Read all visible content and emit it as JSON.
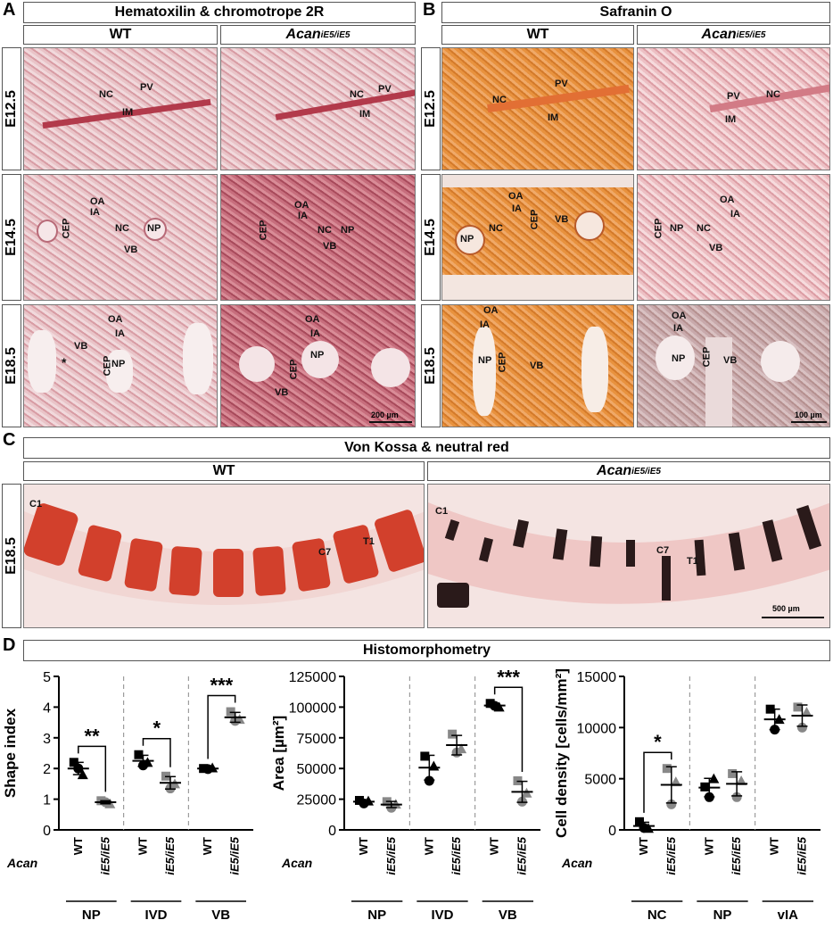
{
  "panels": {
    "A": {
      "letter": "A",
      "title": "Hematoxilin & chromotrope 2R",
      "col_wt": "WT",
      "col_mut_base": "Acan",
      "col_mut_sup": "iE5/iE5"
    },
    "B": {
      "letter": "B",
      "title": "Safranin O",
      "col_wt": "WT",
      "col_mut_base": "Acan",
      "col_mut_sup": "iE5/iE5"
    },
    "C": {
      "letter": "C",
      "title": "Von Kossa & neutral red",
      "col_wt": "WT",
      "col_mut_base": "Acan",
      "col_mut_sup": "iE5/iE5",
      "row": "E18.5"
    },
    "D": {
      "letter": "D",
      "title": "Histomorphometry"
    }
  },
  "rows": [
    "E12.5",
    "E14.5",
    "E18.5"
  ],
  "scalebars": {
    "A": "200 µm",
    "B": "100 µm",
    "C": "500 µm"
  },
  "tissue_labels": {
    "A_wt_e125": [
      "NC",
      "PV",
      "IM"
    ],
    "A_mut_e125": [
      "NC",
      "PV",
      "IM"
    ],
    "A_wt_e145": [
      "OA",
      "IA",
      "CEP",
      "NC",
      "NP",
      "VB"
    ],
    "A_mut_e145": [
      "OA",
      "IA",
      "CEP",
      "NC",
      "NP",
      "VB"
    ],
    "A_wt_e185": [
      "OA",
      "IA",
      "VB",
      "*",
      "CEP",
      "NP"
    ],
    "A_mut_e185": [
      "OA",
      "IA",
      "CEP",
      "NP",
      "VB"
    ],
    "B_wt_e125": [
      "NC",
      "PV",
      "IM"
    ],
    "B_mut_e125": [
      "PV",
      "NC",
      "IM"
    ],
    "B_wt_e145": [
      "OA",
      "IA",
      "CEP",
      "VB",
      "NP",
      "NC"
    ],
    "B_mut_e145": [
      "OA",
      "IA",
      "CEP",
      "NP",
      "NC",
      "VB"
    ],
    "B_wt_e185": [
      "OA",
      "IA",
      "NP",
      "CEP",
      "VB"
    ],
    "B_mut_e185": [
      "OA",
      "IA",
      "NP",
      "CEP",
      "VB"
    ],
    "C_wt": [
      "C1",
      "C7",
      "T1"
    ],
    "C_mut": [
      "C1",
      "C7",
      "T1"
    ]
  },
  "chart_data": [
    {
      "type": "scatter",
      "ylabel": "Shape index",
      "ylim": [
        0,
        5
      ],
      "yticks": [
        0,
        1,
        2,
        3,
        4,
        5
      ],
      "row_label": "Acan",
      "groups": [
        {
          "name": "NP",
          "categories": [
            "WT",
            "iE5/iE5"
          ],
          "wt": [
            2.2,
            2.0,
            1.8
          ],
          "mut": [
            0.95,
            0.9,
            0.85
          ],
          "sig": "**"
        },
        {
          "name": "IVD",
          "categories": [
            "WT",
            "iE5/iE5"
          ],
          "wt": [
            2.45,
            2.1,
            2.2
          ],
          "mut": [
            1.75,
            1.35,
            1.5
          ],
          "sig": "*"
        },
        {
          "name": "VB",
          "categories": [
            "WT",
            "iE5/iE5"
          ],
          "wt": [
            2.0,
            1.98,
            2.02
          ],
          "mut": [
            3.85,
            3.55,
            3.6
          ],
          "sig": "***"
        }
      ]
    },
    {
      "type": "scatter",
      "ylabel": "Area [µm²]",
      "ylim": [
        0,
        125000
      ],
      "yticks": [
        0,
        25000,
        50000,
        75000,
        100000,
        125000
      ],
      "row_label": "Acan",
      "groups": [
        {
          "name": "NP",
          "categories": [
            "WT",
            "iE5/iE5"
          ],
          "wt": [
            24000,
            21500,
            23500
          ],
          "mut": [
            23000,
            18000,
            21000
          ],
          "sig": ""
        },
        {
          "name": "IVD",
          "categories": [
            "WT",
            "iE5/iE5"
          ],
          "wt": [
            60000,
            40000,
            52000
          ],
          "mut": [
            78000,
            63000,
            66000
          ],
          "sig": ""
        },
        {
          "name": "VB",
          "categories": [
            "WT",
            "iE5/iE5"
          ],
          "wt": [
            103000,
            101000,
            100000
          ],
          "mut": [
            40000,
            23000,
            30000
          ],
          "sig": "***"
        }
      ]
    },
    {
      "type": "scatter",
      "ylabel": "Cell density [cells/mm²]",
      "ylim": [
        0,
        15000
      ],
      "yticks": [
        0,
        5000,
        10000,
        15000
      ],
      "row_label": "Acan",
      "groups": [
        {
          "name": "NC",
          "categories": [
            "WT",
            "iE5/iE5"
          ],
          "wt": [
            800,
            200,
            150
          ],
          "mut": [
            6000,
            2500,
            4700
          ],
          "sig": "*"
        },
        {
          "name": "NP",
          "categories": [
            "WT",
            "iE5/iE5"
          ],
          "wt": [
            4200,
            3200,
            5000
          ],
          "mut": [
            5500,
            3200,
            4800
          ],
          "sig": ""
        },
        {
          "name": "vIA",
          "categories": [
            "WT",
            "iE5/iE5"
          ],
          "wt": [
            11800,
            9800,
            10800
          ],
          "mut": [
            12000,
            10000,
            11500
          ],
          "sig": ""
        }
      ]
    }
  ]
}
